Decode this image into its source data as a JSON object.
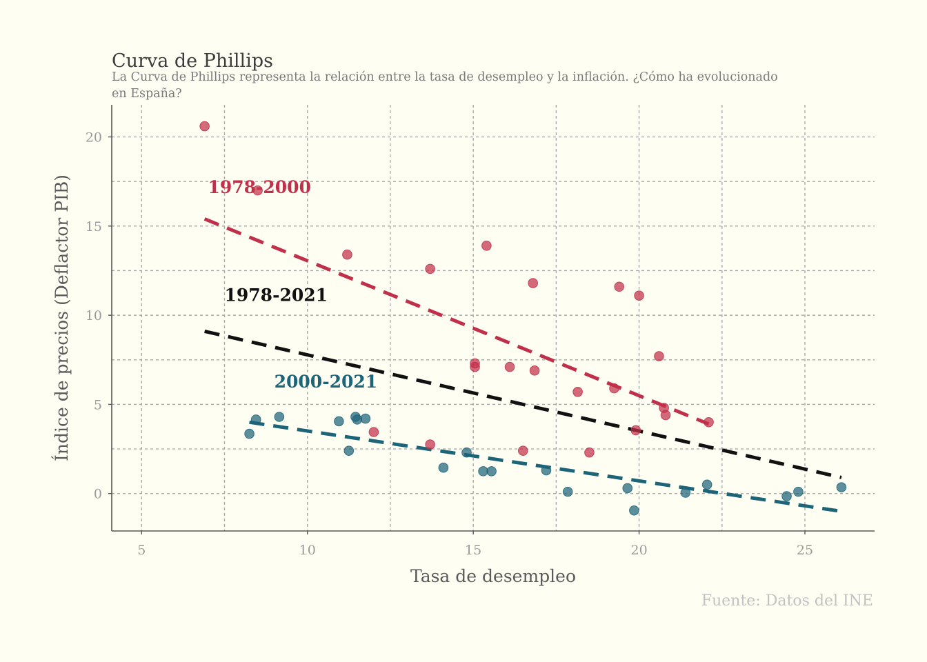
{
  "chart_data": {
    "type": "scatter",
    "title": "Curva de Phillips",
    "subtitle": [
      "La Curva de Phillips representa la relación entre la tasa de desempleo y la inflación. ¿Cómo ha evolucionado",
      "en España?"
    ],
    "xlabel": "Tasa de desempleo",
    "ylabel": "Índice de precios (Deflactor PIB)",
    "caption": "Fuente: Datos del INE",
    "xlim": [
      4.1,
      27.1
    ],
    "ylim": [
      -2.1,
      21.8
    ],
    "x_ticks": [
      5,
      10,
      15,
      20,
      25
    ],
    "y_ticks": [
      0,
      5,
      10,
      15,
      20
    ],
    "x_minor_grid": [
      7.5,
      12.5,
      17.5,
      22.5
    ],
    "y_minor_grid": [
      2.5,
      7.5,
      12.5,
      17.5
    ],
    "grid": true,
    "series": [
      {
        "color": "#c0304a",
        "points": [
          [
            6.9,
            20.6
          ],
          [
            8.5,
            17.0
          ],
          [
            11.2,
            13.4
          ],
          [
            13.7,
            12.6
          ],
          [
            15.4,
            13.9
          ],
          [
            16.8,
            11.8
          ],
          [
            19.4,
            11.6
          ],
          [
            20.0,
            11.1
          ],
          [
            15.05,
            7.3
          ],
          [
            15.05,
            7.1
          ],
          [
            16.1,
            7.1
          ],
          [
            16.85,
            6.9
          ],
          [
            20.6,
            7.7
          ],
          [
            18.15,
            5.7
          ],
          [
            19.25,
            5.9
          ],
          [
            20.75,
            4.8
          ],
          [
            20.8,
            4.4
          ],
          [
            22.1,
            4.0
          ],
          [
            19.9,
            3.55
          ],
          [
            12.0,
            3.45
          ],
          [
            13.7,
            2.75
          ],
          [
            16.5,
            2.4
          ],
          [
            18.5,
            2.3
          ]
        ]
      },
      {
        "color": "#1d6478",
        "points": [
          [
            8.25,
            3.35
          ],
          [
            8.45,
            4.15
          ],
          [
            9.15,
            4.3
          ],
          [
            10.95,
            4.05
          ],
          [
            11.45,
            4.3
          ],
          [
            11.5,
            4.15
          ],
          [
            11.75,
            4.2
          ],
          [
            11.25,
            2.4
          ],
          [
            14.1,
            1.45
          ],
          [
            14.8,
            2.3
          ],
          [
            15.3,
            1.25
          ],
          [
            15.55,
            1.25
          ],
          [
            17.2,
            1.3
          ],
          [
            17.85,
            0.1
          ],
          [
            19.65,
            0.3
          ],
          [
            19.85,
            -0.95
          ],
          [
            21.4,
            0.05
          ],
          [
            22.05,
            0.5
          ],
          [
            24.45,
            -0.15
          ],
          [
            24.8,
            0.1
          ],
          [
            26.1,
            0.35
          ]
        ]
      }
    ],
    "trend_lines": [
      {
        "period": "1978-2000",
        "color": "#c0304a",
        "x": [
          6.9,
          22.1
        ],
        "y": [
          15.4,
          3.9
        ]
      },
      {
        "period": "1978-2021",
        "color": "#111111",
        "x": [
          6.9,
          26.1
        ],
        "y": [
          9.1,
          0.9
        ]
      },
      {
        "period": "2000-2021",
        "color": "#1d6478",
        "x": [
          8.25,
          26.1
        ],
        "y": [
          4.0,
          -1.0
        ]
      }
    ],
    "annotations": [
      {
        "text": "1978-2000",
        "x": 7.0,
        "y": 16.85,
        "color": "#c0304a"
      },
      {
        "text": "1978-2021",
        "x": 7.5,
        "y": 10.8,
        "color": "#111111"
      },
      {
        "text": "2000-2021",
        "x": 9.0,
        "y": 5.95,
        "color": "#1d6478"
      }
    ]
  }
}
